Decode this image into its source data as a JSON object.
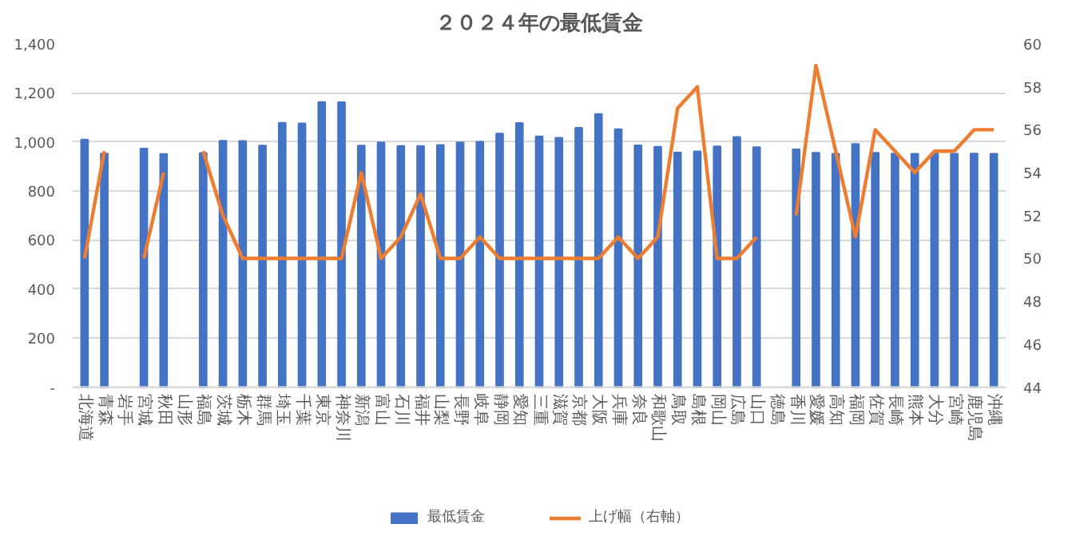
{
  "chart_data": {
    "type": "bar",
    "title": "２０２４年の最低賃金",
    "categories": [
      "北海道",
      "青森",
      "岩手",
      "宮城",
      "秋田",
      "山形",
      "福島",
      "茨城",
      "栃木",
      "群馬",
      "埼玉",
      "千葉",
      "東京",
      "神奈川",
      "新潟",
      "富山",
      "石川",
      "福井",
      "山梨",
      "長野",
      "岐阜",
      "静岡",
      "愛知",
      "三重",
      "滋賀",
      "京都",
      "大阪",
      "兵庫",
      "奈良",
      "和歌山",
      "鳥取",
      "島根",
      "岡山",
      "広島",
      "山口",
      "徳島",
      "香川",
      "愛媛",
      "高知",
      "福岡",
      "佐賀",
      "長崎",
      "熊本",
      "大分",
      "宮崎",
      "鹿児島",
      "沖縄"
    ],
    "series": [
      {
        "name": "最低賃金",
        "color": "#4472c4",
        "values": [
          1010,
          953,
          null,
          973,
          951,
          null,
          955,
          1005,
          1004,
          985,
          1078,
          1076,
          1163,
          1162,
          985,
          998,
          984,
          984,
          988,
          998,
          1001,
          1034,
          1077,
          1023,
          1017,
          1058,
          1114,
          1052,
          986,
          980,
          957,
          962,
          982,
          1020,
          979,
          null,
          970,
          956,
          952,
          992,
          956,
          953,
          952,
          954,
          952,
          953,
          952
        ]
      },
      {
        "name": "上げ幅（右軸）",
        "type": "line",
        "axis": "y2",
        "color": "#ed7d31",
        "values": [
          50,
          55,
          null,
          50,
          54,
          null,
          55,
          52,
          50,
          50,
          50,
          50,
          50,
          50,
          54,
          50,
          51,
          53,
          50,
          50,
          51,
          50,
          50,
          50,
          50,
          50,
          50,
          51,
          50,
          51,
          57,
          58,
          50,
          50,
          51,
          null,
          52,
          59,
          55,
          51,
          56,
          55,
          54,
          55,
          55,
          56,
          56
        ]
      }
    ],
    "ylim": [
      0,
      1400
    ],
    "yticks": [
      {
        "value": 0,
        "label": "-"
      },
      {
        "value": 200,
        "label": "200"
      },
      {
        "value": 400,
        "label": "400"
      },
      {
        "value": 600,
        "label": "600"
      },
      {
        "value": 800,
        "label": "800"
      },
      {
        "value": 1000,
        "label": "1,000"
      },
      {
        "value": 1200,
        "label": "1,200"
      },
      {
        "value": 1400,
        "label": "1,400"
      }
    ],
    "y2lim": [
      44,
      60
    ],
    "y2ticks": [
      44,
      46,
      48,
      50,
      52,
      54,
      56,
      58,
      60
    ],
    "grid": "y",
    "legend": "bottom"
  }
}
